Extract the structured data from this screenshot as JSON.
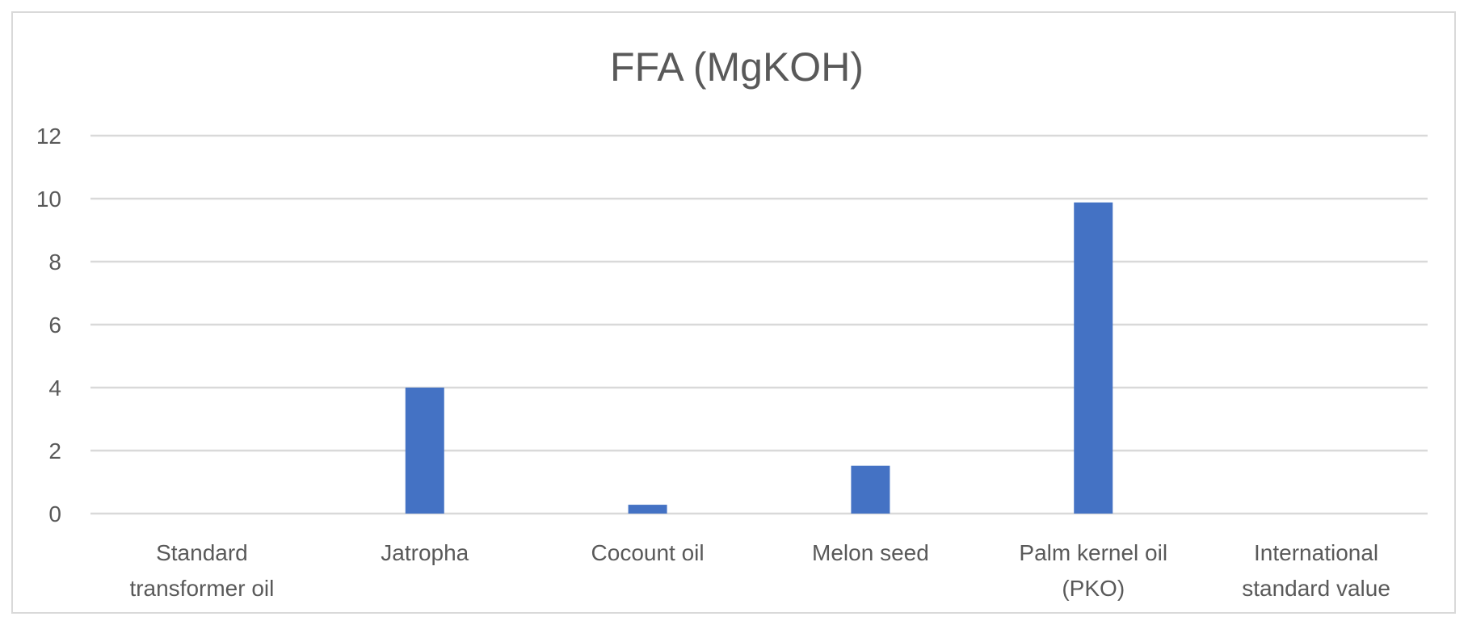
{
  "chart_data": {
    "type": "bar",
    "title": "FFA (MgKOH)",
    "categories": [
      [
        "Standard",
        "transformer oil"
      ],
      [
        "Jatropha"
      ],
      [
        "Cocount oil"
      ],
      [
        "Melon seed"
      ],
      [
        "Palm kernel oil",
        "(PKO)"
      ],
      [
        "International",
        "standard value"
      ]
    ],
    "values": [
      0,
      4.0,
      0.28,
      1.52,
      9.88,
      0
    ],
    "ylim": [
      0,
      12
    ],
    "yticks": [
      0,
      2,
      4,
      6,
      8,
      10,
      12
    ],
    "bar_color": "#4472c4",
    "grid": true,
    "legend": "none"
  }
}
